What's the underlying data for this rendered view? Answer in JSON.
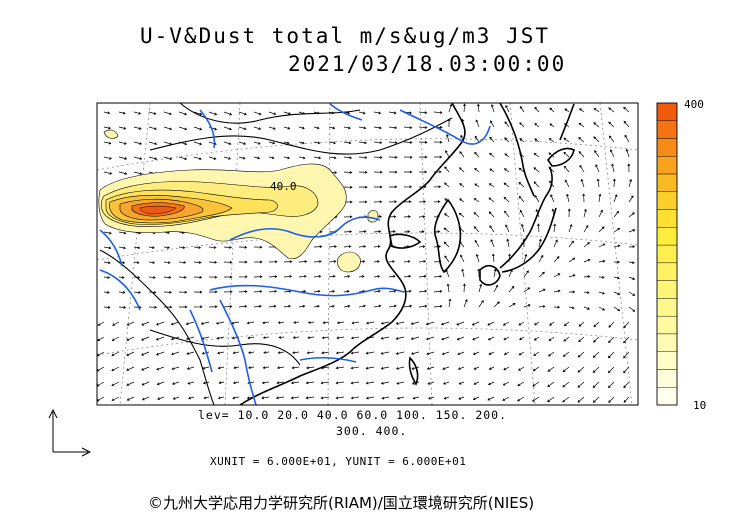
{
  "title": {
    "line1": "U-V&Dust total m/s&ug/m3 JST",
    "line2": "2021/03/18.03:00:00"
  },
  "levels": {
    "line1": "lev= 10.0 20.0 40.0 60.0 100. 150. 200.",
    "line2": "300. 400."
  },
  "units_line": "XUNIT = 6.000E+01, YUNIT = 6.000E+01",
  "credit": "©九州大学応用力学研究所(RIAM)/国立環境研究所(NIES)",
  "colorbar": {
    "max_label": "400",
    "min_label": "10",
    "colors": [
      "#f05a0a",
      "#f47412",
      "#f68b18",
      "#f8a21e",
      "#faba24",
      "#fcd02a",
      "#fee030",
      "#ffec3c",
      "#fff050",
      "#fff364",
      "#fff678",
      "#fff88c",
      "#fffaa0",
      "#fffbb4",
      "#fffdc8",
      "#fffedc",
      "#ffffee"
    ]
  },
  "contour_label": "40.0",
  "colors": {
    "coast": "#000000",
    "river": "#1e5fe8",
    "dust_light": "#fff7b0",
    "dust_mid": "#ffe25a",
    "dust_high": "#f7a52c",
    "dust_peak": "#ee5a14"
  }
}
